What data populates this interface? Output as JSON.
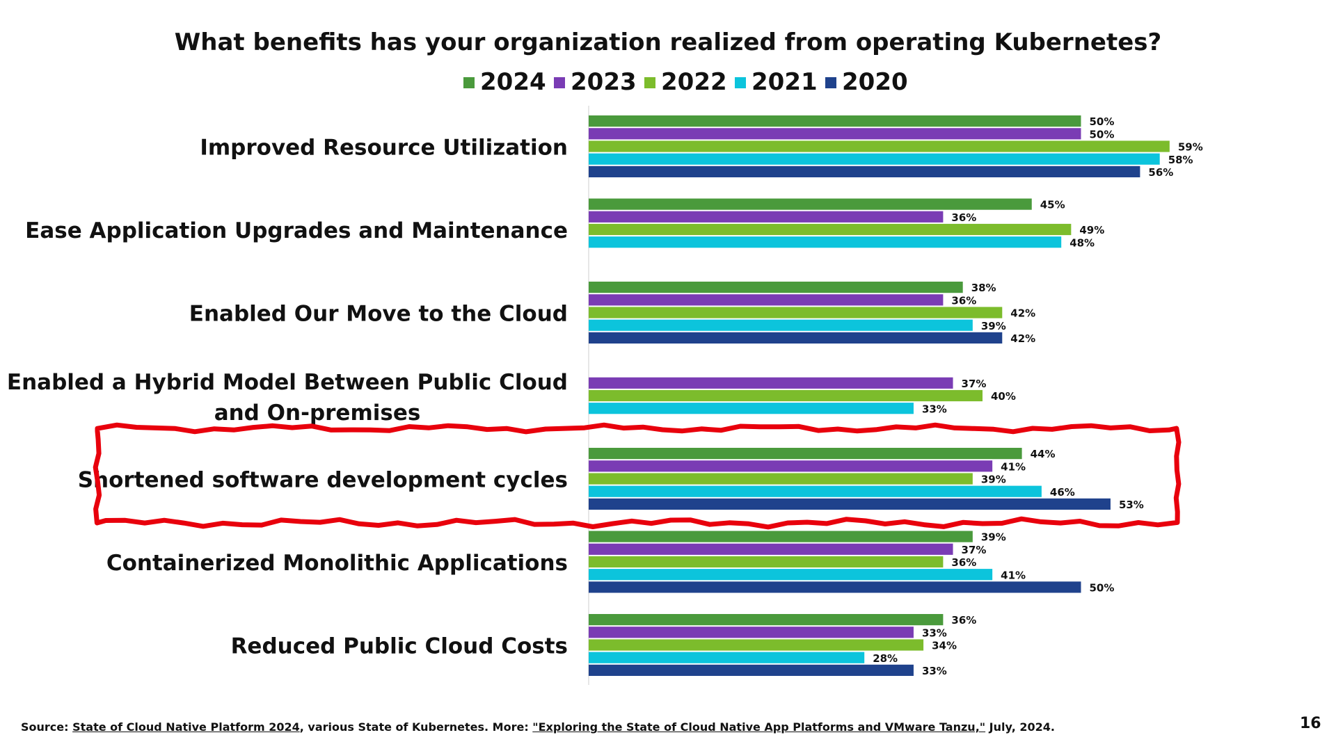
{
  "chart_data": {
    "type": "bar",
    "orientation": "horizontal",
    "title": "What benefits has your organization realized from operating Kubernetes?",
    "legend_position": "top",
    "grid": false,
    "xlim": [
      0,
      70
    ],
    "categories": [
      "Improved Resource Utilization",
      "Ease Application Upgrades and Maintenance",
      "Enabled Our Move to the Cloud",
      "Enabled a Hybrid Model Between Public Cloud and On-premises",
      "Shortened software development cycles",
      "Containerized Monolithic Applications",
      "Reduced Public Cloud Costs"
    ],
    "category_lines": [
      [
        "Improved Resource Utilization"
      ],
      [
        "Ease Application Upgrades and Maintenance"
      ],
      [
        "Enabled Our Move to the Cloud"
      ],
      [
        "Enabled a Hybrid Model Between Public Cloud",
        "and On-premises"
      ],
      [
        "Shortened software development cycles"
      ],
      [
        "Containerized Monolithic Applications"
      ],
      [
        "Reduced Public Cloud Costs"
      ]
    ],
    "series": [
      {
        "name": "2024",
        "color": "#4a9a3c",
        "values": [
          50,
          45,
          38,
          null,
          44,
          39,
          36
        ]
      },
      {
        "name": "2023",
        "color": "#7a3cb4",
        "values": [
          50,
          36,
          36,
          37,
          41,
          37,
          33
        ]
      },
      {
        "name": "2022",
        "color": "#7cbc2c",
        "values": [
          59,
          49,
          42,
          40,
          39,
          36,
          34
        ]
      },
      {
        "name": "2021",
        "color": "#0cc4dc",
        "values": [
          58,
          48,
          39,
          33,
          46,
          41,
          28
        ]
      },
      {
        "name": "2020",
        "color": "#1f428c",
        "values": [
          56,
          null,
          42,
          null,
          53,
          50,
          33
        ]
      }
    ],
    "value_suffix": "%",
    "highlight": {
      "category_index": 4,
      "color": "#e8000c"
    }
  },
  "footer": {
    "source_prefix": "Source: ",
    "link1": "State of Cloud Native Platform 2024",
    "middle": ", various State of Kubernetes. More: ",
    "link2": "\"Exploring the State of Cloud Native App Platforms and VMware Tanzu,\"",
    "suffix": " July, 2024."
  },
  "page_number": "16"
}
